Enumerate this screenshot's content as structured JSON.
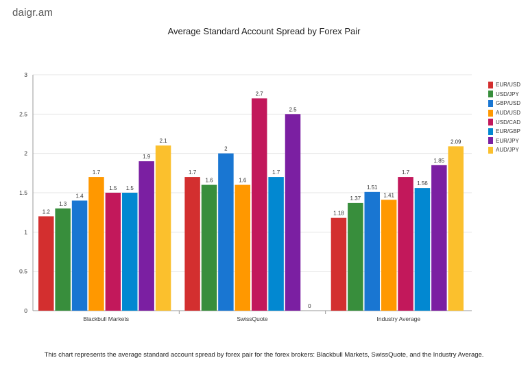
{
  "brand": "daigr.am",
  "caption": "This chart represents the average standard account spread by forex pair for the forex brokers: Blackbull Markets, SwissQuote, and the Industry Average.",
  "colors": {
    "EUR/USD": "#d32f2f",
    "USD/JPY": "#388e3c",
    "GBP/USD": "#1976d2",
    "AUD/USD": "#ff9800",
    "USD/CAD": "#c2185b",
    "EUR/GBP": "#0288d1",
    "EUR/JPY": "#7b1fa2",
    "AUD/JPY": "#fbc02d"
  },
  "chart_data": {
    "type": "bar",
    "title": "Average Standard Account Spread by Forex Pair",
    "xlabel": "",
    "ylabel": "",
    "ylim": [
      0,
      3
    ],
    "yticks": [
      "0",
      "0.5",
      "1",
      "1.5",
      "2",
      "2.5",
      "3"
    ],
    "grid": true,
    "legend_position": "right",
    "categories": [
      "Blackbull Markets",
      "SwissQuote",
      "Industry Average"
    ],
    "series": [
      {
        "name": "EUR/USD",
        "values": [
          1.2,
          1.7,
          1.18
        ],
        "labels": [
          "1.2",
          "1.7",
          "1.18"
        ]
      },
      {
        "name": "USD/JPY",
        "values": [
          1.3,
          1.6,
          1.37
        ],
        "labels": [
          "1.3",
          "1.6",
          "1.37"
        ]
      },
      {
        "name": "GBP/USD",
        "values": [
          1.4,
          2.0,
          1.51
        ],
        "labels": [
          "1.4",
          "2",
          "1.51"
        ]
      },
      {
        "name": "AUD/USD",
        "values": [
          1.7,
          1.6,
          1.41
        ],
        "labels": [
          "1.7",
          "1.6",
          "1.41"
        ]
      },
      {
        "name": "USD/CAD",
        "values": [
          1.5,
          2.7,
          1.7
        ],
        "labels": [
          "1.5",
          "2.7",
          "1.7"
        ]
      },
      {
        "name": "EUR/GBP",
        "values": [
          1.5,
          1.7,
          1.56
        ],
        "labels": [
          "1.5",
          "1.7",
          "1.56"
        ]
      },
      {
        "name": "EUR/JPY",
        "values": [
          1.9,
          2.5,
          1.85
        ],
        "labels": [
          "1.9",
          "2.5",
          "1.85"
        ]
      },
      {
        "name": "AUD/JPY",
        "values": [
          2.1,
          0,
          2.09
        ],
        "labels": [
          "2.1",
          "0",
          "2.09"
        ]
      }
    ]
  }
}
